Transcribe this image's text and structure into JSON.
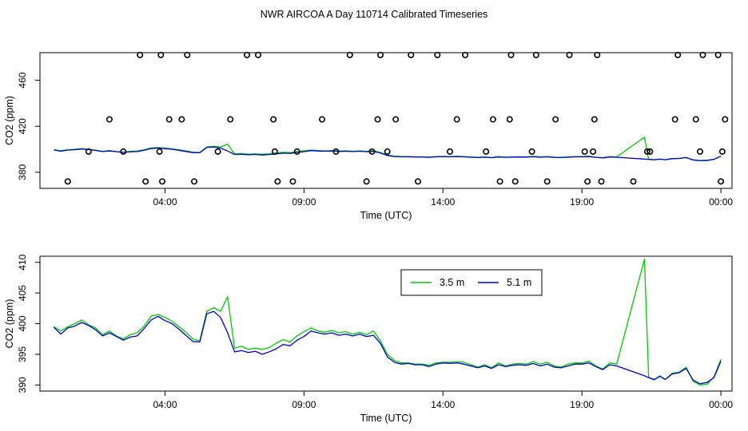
{
  "title": "NWR AIRCOA A  Day 110714  Calibrated Timeseries",
  "chart_data": [
    {
      "type": "line",
      "panel": "top",
      "xlabel": "Time (UTC)",
      "ylabel": "CO2 (ppm)",
      "x_unit": "hours (UTC)",
      "xlim": [
        -0.5,
        24.4
      ],
      "ylim": [
        366,
        484
      ],
      "x_ticks": [
        {
          "x": 4,
          "label": "04:00"
        },
        {
          "x": 9,
          "label": "09:00"
        },
        {
          "x": 14,
          "label": "14:00"
        },
        {
          "x": 19,
          "label": "19:00"
        },
        {
          "x": 24,
          "label": "00:00"
        }
      ],
      "y_ticks": [
        {
          "y": 380,
          "label": "380"
        },
        {
          "y": 420,
          "label": "420"
        },
        {
          "y": 460,
          "label": "460"
        }
      ],
      "grid": false,
      "series": [
        {
          "name": "",
          "color": "#00cc00",
          "x": [
            0.0,
            0.25,
            0.5,
            0.75,
            1.0,
            1.25,
            1.5,
            1.75,
            2.0,
            2.25,
            2.5,
            2.75,
            3.0,
            3.25,
            3.5,
            3.75,
            4.0,
            4.25,
            4.5,
            4.75,
            5.0,
            5.25,
            5.5,
            5.75,
            6.0,
            6.25,
            6.5,
            6.75,
            7.0,
            7.25,
            7.5,
            7.75,
            8.0,
            8.25,
            8.5,
            8.75,
            9.0,
            9.25,
            9.5,
            9.75,
            10.0,
            10.25,
            10.5,
            10.75,
            11.0,
            11.25,
            11.5,
            11.75,
            12.0,
            12.25,
            12.5,
            12.75,
            13.0,
            13.25,
            13.5,
            13.75,
            14.0,
            14.25,
            14.5,
            14.75,
            15.0,
            15.25,
            15.5,
            15.75,
            16.0,
            16.25,
            16.5,
            16.75,
            17.0,
            17.25,
            17.5,
            17.75,
            18.0,
            18.25,
            18.5,
            18.75,
            19.0,
            19.25,
            19.5,
            19.75,
            20.0,
            20.25,
            21.25,
            21.4,
            21.6,
            21.8,
            22.0,
            22.25,
            22.5,
            22.75,
            23.0,
            23.25,
            23.5,
            23.75,
            24.0
          ],
          "values": [
            399.5,
            398.8,
            399.5,
            400.0,
            400.6,
            399.8,
            399.3,
            398.2,
            398.8,
            398.0,
            397.5,
            398.2,
            398.5,
            399.6,
            401.2,
            401.5,
            401.0,
            400.4,
            399.5,
            398.6,
            397.5,
            397.2,
            402.0,
            402.6,
            402.0,
            404.4,
            396.0,
            396.3,
            395.8,
            396.0,
            395.8,
            396.1,
            396.8,
            397.4,
            397.0,
            398.0,
            398.7,
            399.3,
            398.8,
            398.6,
            398.9,
            398.5,
            398.7,
            398.3,
            398.6,
            398.2,
            398.8,
            397.2,
            395.0,
            394.0,
            393.6,
            393.6,
            393.4,
            393.4,
            393.2,
            393.6,
            393.7,
            393.7,
            393.8,
            393.7,
            393.3,
            392.9,
            393.3,
            392.8,
            393.6,
            393.1,
            393.4,
            393.5,
            393.4,
            393.8,
            393.4,
            393.7,
            393.1,
            392.9,
            393.4,
            393.6,
            393.6,
            393.9,
            393.1,
            392.6,
            393.6,
            393.4,
            410.5,
            391.2,
            390.8,
            391.5,
            390.9,
            391.9,
            392.1,
            392.9,
            390.6,
            390.0,
            390.1,
            391.3,
            394.2
          ]
        },
        {
          "name": "",
          "color": "#0000cc",
          "x": [
            0.0,
            0.25,
            0.5,
            0.75,
            1.0,
            1.25,
            1.5,
            1.75,
            2.0,
            2.25,
            2.5,
            2.75,
            3.0,
            3.25,
            3.5,
            3.75,
            4.0,
            4.25,
            4.5,
            4.75,
            5.0,
            5.25,
            5.5,
            5.75,
            6.0,
            6.25,
            6.5,
            6.75,
            7.0,
            7.25,
            7.5,
            7.75,
            8.0,
            8.25,
            8.5,
            8.75,
            9.0,
            9.25,
            9.5,
            9.75,
            10.0,
            10.25,
            10.5,
            10.75,
            11.0,
            11.25,
            11.5,
            11.75,
            12.0,
            12.25,
            12.5,
            12.75,
            13.0,
            13.25,
            13.5,
            13.75,
            14.0,
            14.25,
            14.5,
            14.75,
            15.0,
            15.25,
            15.5,
            15.75,
            16.0,
            16.25,
            16.5,
            16.75,
            17.0,
            17.25,
            17.5,
            17.75,
            18.0,
            18.25,
            18.5,
            18.75,
            19.0,
            19.25,
            19.5,
            19.75,
            20.0,
            20.25,
            21.25,
            21.4,
            21.6,
            21.8,
            22.0,
            22.25,
            22.5,
            22.75,
            23.0,
            23.25,
            23.5,
            23.75,
            24.0
          ],
          "values": [
            399.4,
            398.3,
            399.3,
            399.6,
            400.2,
            399.7,
            399.0,
            398.0,
            398.5,
            397.9,
            397.3,
            397.8,
            398.0,
            399.2,
            400.6,
            401.2,
            400.5,
            400.0,
            399.1,
            398.1,
            397.1,
            397.0,
            401.6,
            402.0,
            401.0,
            398.5,
            395.4,
            395.6,
            395.3,
            395.5,
            395.0,
            395.4,
            395.9,
            396.6,
            396.4,
            397.3,
            397.9,
            398.8,
            398.5,
            398.3,
            398.5,
            398.1,
            398.3,
            398.0,
            398.3,
            397.9,
            398.1,
            396.8,
            394.6,
            393.7,
            393.4,
            393.5,
            393.3,
            393.3,
            393.0,
            393.4,
            393.6,
            393.5,
            393.6,
            393.4,
            393.1,
            392.8,
            393.1,
            392.7,
            393.3,
            393.0,
            393.2,
            393.3,
            393.2,
            393.5,
            393.1,
            393.4,
            392.9,
            392.8,
            393.1,
            393.4,
            393.4,
            393.6,
            393.0,
            392.5,
            393.3,
            393.1,
            391.5,
            391.2,
            390.9,
            391.4,
            390.9,
            391.8,
            392.0,
            392.7,
            390.8,
            390.2,
            390.4,
            391.2,
            393.9
          ]
        },
        {
          "name": "",
          "type": "scatter",
          "marker": "open-circle",
          "color": "#000000",
          "x": [
            0.5,
            1.25,
            2.0,
            2.5,
            3.1,
            3.3,
            3.8,
            3.85,
            3.9,
            4.15,
            4.6,
            4.8,
            5.05,
            5.9,
            6.35,
            6.95,
            7.35,
            7.9,
            7.95,
            8.05,
            8.6,
            8.75,
            9.65,
            10.15,
            10.65,
            11.25,
            11.45,
            11.65,
            11.75,
            12.0,
            12.3,
            12.85,
            13.1,
            13.8,
            14.25,
            14.5,
            14.8,
            15.55,
            15.8,
            16.05,
            16.4,
            16.45,
            16.6,
            17.2,
            17.35,
            17.75,
            18.05,
            18.55,
            19.1,
            19.2,
            19.4,
            19.45,
            19.55,
            19.7,
            20.85,
            21.35,
            21.45,
            22.35,
            22.45,
            23.1,
            23.25,
            23.35,
            23.9,
            24.0,
            24.05,
            24.15
          ],
          "values": [
            372,
            398,
            426,
            398,
            482,
            372,
            398,
            482,
            372,
            426,
            426,
            482,
            372,
            398,
            426,
            482,
            482,
            426,
            398,
            372,
            372,
            398,
            426,
            398,
            482,
            372,
            398,
            426,
            482,
            398,
            426,
            482,
            372,
            482,
            398,
            426,
            482,
            398,
            426,
            372,
            426,
            482,
            372,
            398,
            482,
            372,
            426,
            482,
            398,
            372,
            398,
            426,
            482,
            372,
            372,
            398,
            398,
            426,
            482,
            426,
            398,
            482,
            482,
            372,
            398,
            426
          ]
        }
      ]
    },
    {
      "type": "line",
      "panel": "bottom",
      "xlabel": "Time (UTC)",
      "ylabel": "CO2 (ppm)",
      "x_unit": "hours (UTC)",
      "xlim": [
        -0.5,
        24.4
      ],
      "ylim": [
        389,
        411
      ],
      "x_ticks": [
        {
          "x": 4,
          "label": "04:00"
        },
        {
          "x": 9,
          "label": "09:00"
        },
        {
          "x": 14,
          "label": "14:00"
        },
        {
          "x": 19,
          "label": "19:00"
        },
        {
          "x": 24,
          "label": "00:00"
        }
      ],
      "y_ticks": [
        {
          "y": 390,
          "label": "390"
        },
        {
          "y": 395,
          "label": "395"
        },
        {
          "y": 400,
          "label": "400"
        },
        {
          "y": 405,
          "label": "405"
        },
        {
          "y": 410,
          "label": "410"
        }
      ],
      "grid": false,
      "legend": {
        "placement": "top-right",
        "entries": [
          {
            "label": "3.5 m",
            "color": "#00cc00"
          },
          {
            "label": "5.1 m",
            "color": "#0000cc"
          }
        ]
      },
      "series": [
        {
          "name": "3.5 m",
          "color": "#00cc00",
          "x": [
            0.0,
            0.25,
            0.5,
            0.75,
            1.0,
            1.25,
            1.5,
            1.75,
            2.0,
            2.25,
            2.5,
            2.75,
            3.0,
            3.25,
            3.5,
            3.75,
            4.0,
            4.25,
            4.5,
            4.75,
            5.0,
            5.25,
            5.5,
            5.75,
            6.0,
            6.25,
            6.5,
            6.75,
            7.0,
            7.25,
            7.5,
            7.75,
            8.0,
            8.25,
            8.5,
            8.75,
            9.0,
            9.25,
            9.5,
            9.75,
            10.0,
            10.25,
            10.5,
            10.75,
            11.0,
            11.25,
            11.5,
            11.75,
            12.0,
            12.25,
            12.5,
            12.75,
            13.0,
            13.25,
            13.5,
            13.75,
            14.0,
            14.25,
            14.5,
            14.75,
            15.0,
            15.25,
            15.5,
            15.75,
            16.0,
            16.25,
            16.5,
            16.75,
            17.0,
            17.25,
            17.5,
            17.75,
            18.0,
            18.25,
            18.5,
            18.75,
            19.0,
            19.25,
            19.5,
            19.75,
            20.0,
            20.25,
            21.25,
            21.4,
            21.6,
            21.8,
            22.0,
            22.25,
            22.5,
            22.75,
            23.0,
            23.25,
            23.5,
            23.75,
            24.0
          ],
          "values": [
            399.5,
            398.8,
            399.5,
            400.0,
            400.6,
            399.8,
            399.3,
            398.2,
            398.8,
            398.0,
            397.5,
            398.2,
            398.5,
            399.6,
            401.2,
            401.5,
            401.0,
            400.4,
            399.5,
            398.6,
            397.5,
            397.2,
            402.0,
            402.6,
            402.0,
            404.4,
            396.0,
            396.3,
            395.8,
            396.0,
            395.8,
            396.1,
            396.8,
            397.4,
            397.0,
            398.0,
            398.7,
            399.3,
            398.8,
            398.6,
            398.9,
            398.5,
            398.7,
            398.3,
            398.6,
            398.2,
            398.8,
            397.2,
            395.0,
            394.0,
            393.6,
            393.6,
            393.4,
            393.4,
            393.2,
            393.6,
            393.7,
            393.7,
            393.8,
            393.7,
            393.3,
            392.9,
            393.3,
            392.8,
            393.6,
            393.1,
            393.4,
            393.5,
            393.4,
            393.8,
            393.4,
            393.7,
            393.1,
            392.9,
            393.4,
            393.6,
            393.6,
            393.9,
            393.1,
            392.6,
            393.6,
            393.4,
            410.5,
            391.2,
            390.8,
            391.5,
            390.9,
            391.9,
            392.1,
            392.9,
            390.6,
            390.0,
            390.1,
            391.3,
            394.2
          ]
        },
        {
          "name": "5.1 m",
          "color": "#0000cc",
          "x": [
            0.0,
            0.25,
            0.5,
            0.75,
            1.0,
            1.25,
            1.5,
            1.75,
            2.0,
            2.25,
            2.5,
            2.75,
            3.0,
            3.25,
            3.5,
            3.75,
            4.0,
            4.25,
            4.5,
            4.75,
            5.0,
            5.25,
            5.5,
            5.75,
            6.0,
            6.25,
            6.5,
            6.75,
            7.0,
            7.25,
            7.5,
            7.75,
            8.0,
            8.25,
            8.5,
            8.75,
            9.0,
            9.25,
            9.5,
            9.75,
            10.0,
            10.25,
            10.5,
            10.75,
            11.0,
            11.25,
            11.5,
            11.75,
            12.0,
            12.25,
            12.5,
            12.75,
            13.0,
            13.25,
            13.5,
            13.75,
            14.0,
            14.25,
            14.5,
            14.75,
            15.0,
            15.25,
            15.5,
            15.75,
            16.0,
            16.25,
            16.5,
            16.75,
            17.0,
            17.25,
            17.5,
            17.75,
            18.0,
            18.25,
            18.5,
            18.75,
            19.0,
            19.25,
            19.5,
            19.75,
            20.0,
            20.25,
            21.25,
            21.4,
            21.6,
            21.8,
            22.0,
            22.25,
            22.5,
            22.75,
            23.0,
            23.25,
            23.5,
            23.75,
            24.0
          ],
          "values": [
            399.4,
            398.3,
            399.3,
            399.6,
            400.2,
            399.7,
            399.0,
            398.0,
            398.5,
            397.9,
            397.3,
            397.8,
            398.0,
            399.2,
            400.6,
            401.2,
            400.5,
            400.0,
            399.1,
            398.1,
            397.1,
            397.0,
            401.6,
            402.0,
            401.0,
            398.5,
            395.4,
            395.6,
            395.3,
            395.5,
            395.0,
            395.4,
            395.9,
            396.6,
            396.4,
            397.3,
            397.9,
            398.8,
            398.5,
            398.3,
            398.5,
            398.1,
            398.3,
            398.0,
            398.3,
            397.9,
            398.1,
            396.8,
            394.6,
            393.7,
            393.4,
            393.5,
            393.3,
            393.3,
            393.0,
            393.4,
            393.6,
            393.5,
            393.6,
            393.4,
            393.1,
            392.8,
            393.1,
            392.7,
            393.3,
            393.0,
            393.2,
            393.3,
            393.2,
            393.5,
            393.1,
            393.4,
            392.9,
            392.8,
            393.1,
            393.4,
            393.4,
            393.6,
            393.0,
            392.5,
            393.3,
            393.1,
            391.5,
            391.2,
            390.9,
            391.4,
            390.9,
            391.8,
            392.0,
            392.7,
            390.8,
            390.2,
            390.4,
            391.2,
            393.9
          ]
        }
      ]
    }
  ]
}
